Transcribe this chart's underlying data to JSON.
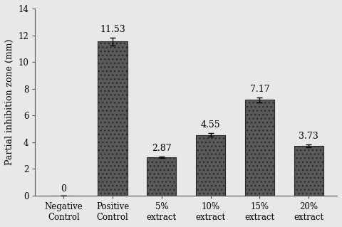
{
  "categories": [
    "Negative\nControl",
    "Positive\nControl",
    "5%\nextract",
    "10%\nextract",
    "15%\nextract",
    "20%\nextract"
  ],
  "values": [
    0,
    11.53,
    2.87,
    4.55,
    7.17,
    3.73
  ],
  "errors": [
    0,
    0.3,
    0.07,
    0.15,
    0.2,
    0.12
  ],
  "bar_color": "#5a5a5a",
  "bar_hatch": "...",
  "ylabel": "Partial inhibition zone (mm)",
  "ylim": [
    0,
    14
  ],
  "yticks": [
    0,
    2,
    4,
    6,
    8,
    10,
    12,
    14
  ],
  "value_labels": [
    "0",
    "11.53",
    "2.87",
    "4.55",
    "7.17",
    "3.73"
  ],
  "background_color": "#e8e8e8",
  "bar_edge_color": "#2a2a2a",
  "error_color": "#000000",
  "label_fontsize": 9,
  "tick_fontsize": 8.5,
  "ylabel_fontsize": 9
}
